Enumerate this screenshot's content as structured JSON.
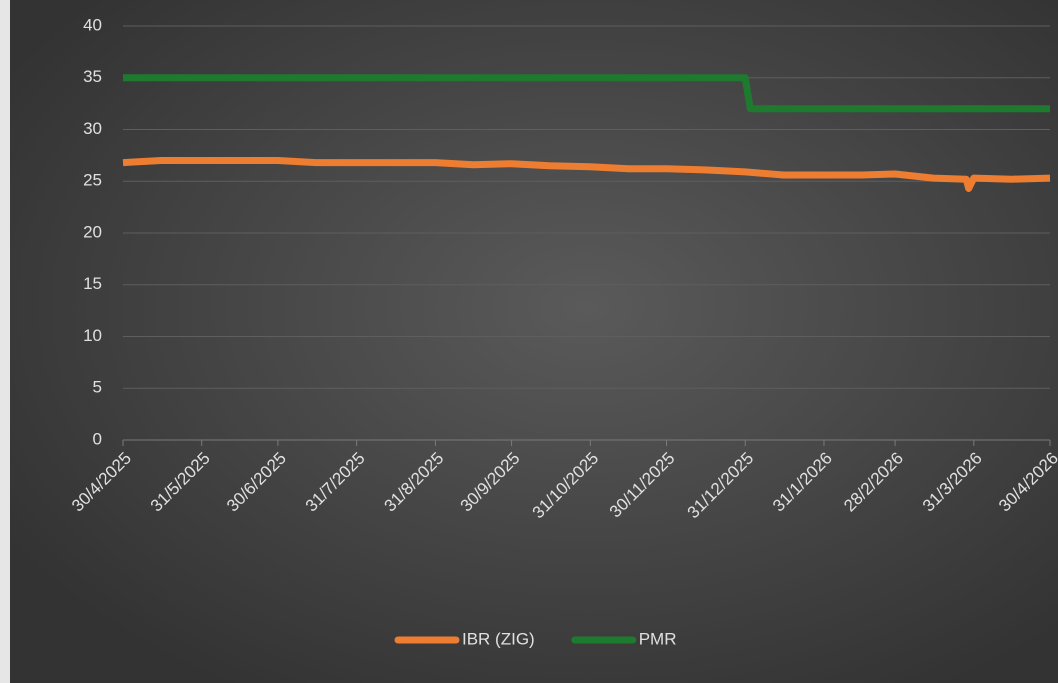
{
  "chart_data": {
    "type": "line",
    "xlim": [
      "30/4/2025",
      "30/4/2026"
    ],
    "xticks": [
      "30/4/2025",
      "31/5/2025",
      "30/6/2025",
      "31/7/2025",
      "31/8/2025",
      "30/9/2025",
      "31/10/2025",
      "30/11/2025",
      "31/12/2025",
      "31/1/2026",
      "28/2/2026",
      "31/3/2026",
      "30/4/2026"
    ],
    "ylim": [
      0,
      40
    ],
    "yticks": [
      0,
      5,
      10,
      15,
      20,
      25,
      30,
      35,
      40
    ],
    "grid": true,
    "legend": "bottom",
    "series": [
      {
        "name": "IBR (ZIG)",
        "color": "#ed7d31",
        "x": [
          "30/4/2025",
          "15/5/2025",
          "31/5/2025",
          "15/6/2025",
          "30/6/2025",
          "15/7/2025",
          "31/7/2025",
          "15/8/2025",
          "31/8/2025",
          "15/9/2025",
          "30/9/2025",
          "15/10/2025",
          "31/10/2025",
          "15/11/2025",
          "30/11/2025",
          "15/12/2025",
          "31/12/2025",
          "15/1/2026",
          "31/1/2026",
          "15/2/2026",
          "28/2/2026",
          "15/3/2026",
          "28/3/2026",
          "29/3/2026",
          "31/3/2026",
          "15/4/2026",
          "30/4/2026"
        ],
        "values": [
          26.8,
          27,
          27,
          27,
          27,
          26.8,
          26.8,
          26.8,
          26.8,
          26.6,
          26.7,
          26.5,
          26.4,
          26.2,
          26.2,
          26.1,
          25.9,
          25.6,
          25.6,
          25.6,
          25.7,
          25.3,
          25.2,
          24.3,
          25.3,
          25.2,
          25.3
        ]
      },
      {
        "name": "PMR",
        "color": "#1e7a2e",
        "x": [
          "30/4/2025",
          "31/12/2025",
          "2/1/2026",
          "30/4/2026"
        ],
        "values": [
          35,
          35,
          32,
          32
        ]
      }
    ]
  }
}
